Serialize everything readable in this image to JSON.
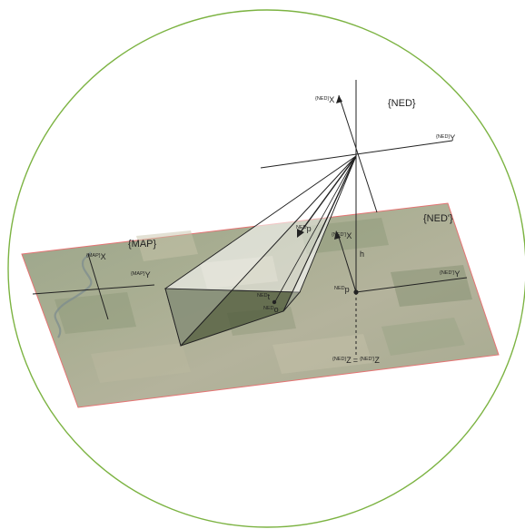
{
  "frames": {
    "ned": "{NED}",
    "ned_prime": "{NED'}",
    "map": "{MAP}"
  },
  "labels": {
    "ned_x": {
      "sup": "{NED}",
      "base": "X"
    },
    "ned_y": {
      "sup": "{NED}",
      "base": "Y"
    },
    "nedp_x": {
      "sup": "{NED'}",
      "base": "X"
    },
    "nedp_y": {
      "sup": "{NED'}",
      "base": "Y"
    },
    "map_x": {
      "sup": "{MAP}",
      "base": "X"
    },
    "map_y": {
      "sup": "{MAP}",
      "base": "Y"
    },
    "ned_p_vec": {
      "sup": "NED",
      "base": "p"
    },
    "ned_p_ground": {
      "sup": "NED",
      "base": "p"
    },
    "ned_t": {
      "sup": "NED",
      "base": "t"
    },
    "ned_o": {
      "sup": "NED",
      "base": "o"
    },
    "height": "h",
    "z_left": {
      "sup": "{NED}",
      "base": "Z"
    },
    "z_equals": "=",
    "z_right": {
      "sup": "{NED'}",
      "base": "Z"
    }
  },
  "colors": {
    "circle": "#7cb342",
    "plane_edge": "#e57373",
    "lines": "#222222",
    "pyramid_base": "#4e5a3a"
  }
}
